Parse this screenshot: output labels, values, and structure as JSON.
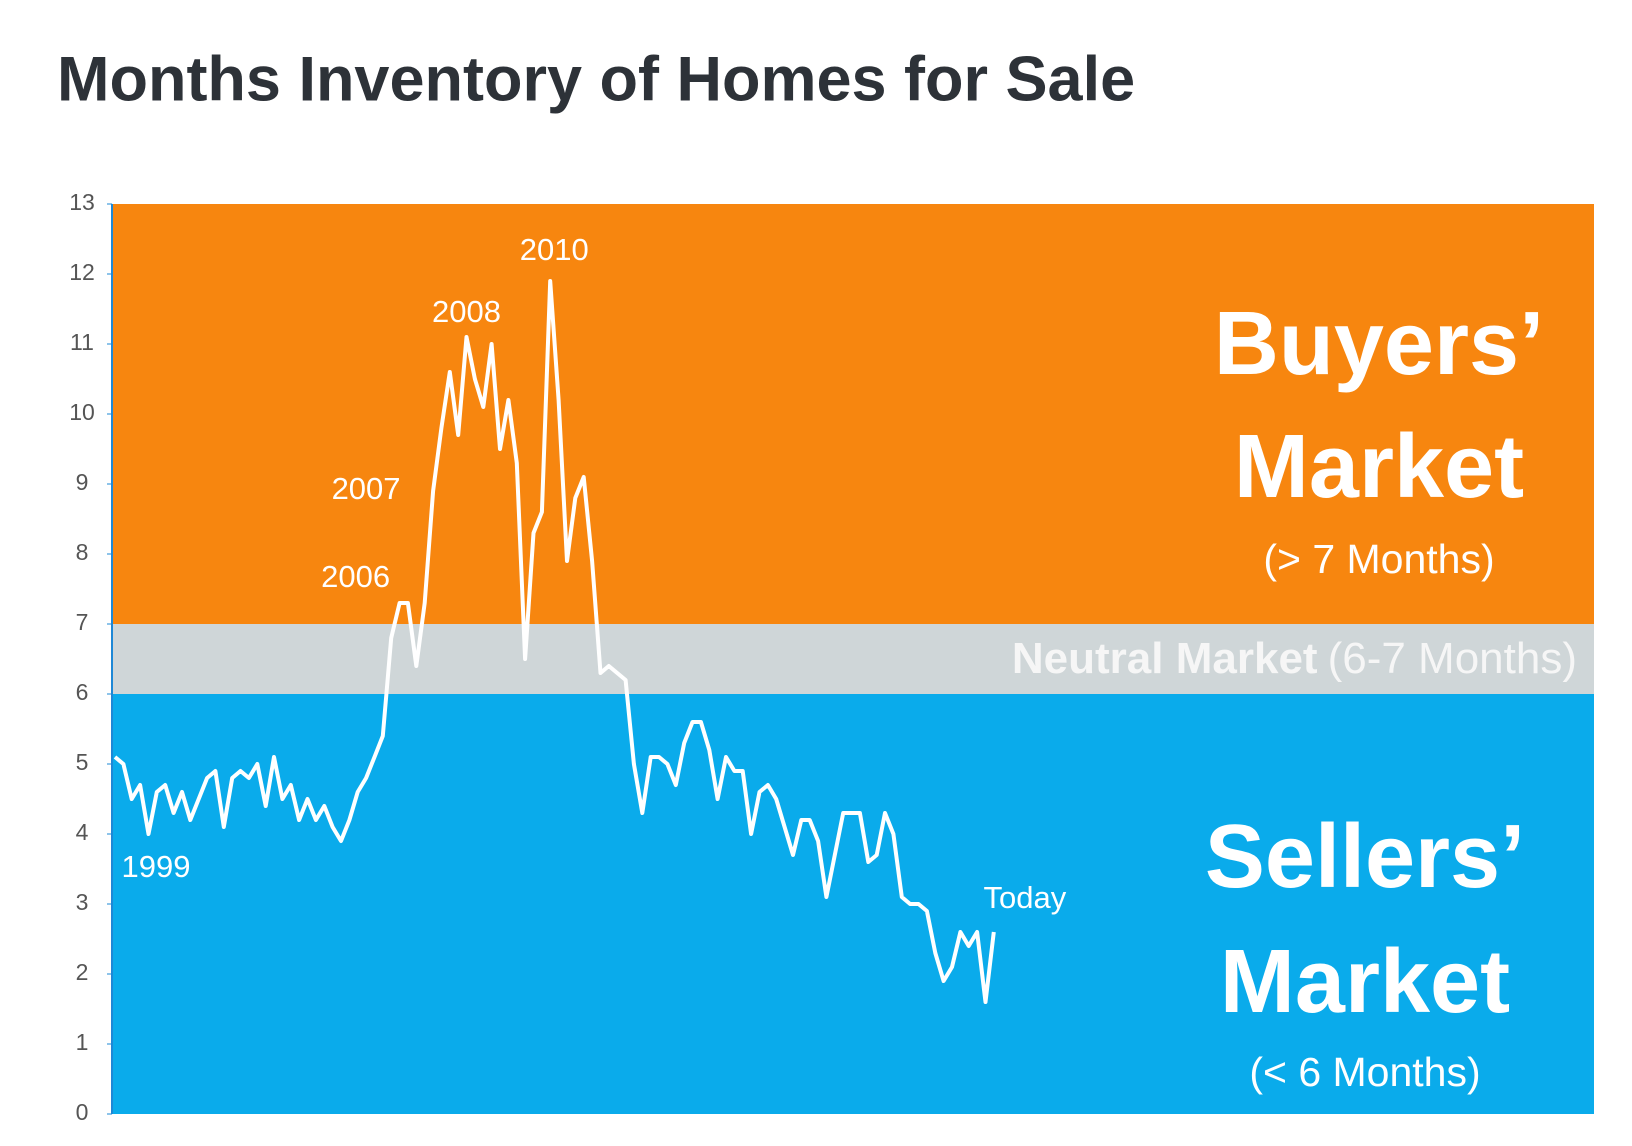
{
  "chart_data": {
    "type": "line",
    "title": "Months Inventory of Homes for Sale",
    "ylim": [
      0,
      13
    ],
    "yticks": [
      0,
      1,
      2,
      3,
      4,
      5,
      6,
      7,
      8,
      9,
      10,
      11,
      12,
      13
    ],
    "color": "#ffffff",
    "categories": [
      null,
      null,
      null,
      null,
      "1999",
      null,
      null,
      null,
      null,
      null,
      null,
      null,
      null,
      null,
      null,
      null,
      null,
      null,
      null,
      null,
      null,
      null,
      null,
      null,
      null,
      null,
      null,
      null,
      null,
      null,
      null,
      null,
      null,
      null,
      "2006",
      null,
      null,
      null,
      "2007",
      null,
      null,
      null,
      "2008",
      null,
      null,
      null,
      null,
      null,
      null,
      null,
      null,
      null,
      "2010",
      null,
      null,
      null,
      null,
      null,
      null,
      null,
      null,
      null,
      null,
      null,
      null,
      null,
      null,
      null,
      null,
      null,
      null,
      null,
      null,
      null,
      null,
      null,
      null,
      null,
      null,
      null,
      null,
      null,
      null,
      null,
      null,
      null,
      null,
      null,
      null,
      null,
      null,
      null,
      null,
      null,
      null,
      null,
      null,
      null,
      null,
      null,
      null,
      null,
      null,
      null,
      null,
      "Today"
    ],
    "values": [
      5.1,
      5.0,
      4.5,
      4.7,
      4.0,
      4.6,
      4.7,
      4.3,
      4.6,
      4.2,
      4.5,
      4.8,
      4.9,
      4.1,
      4.8,
      4.9,
      4.8,
      5.0,
      4.4,
      5.1,
      4.5,
      4.7,
      4.2,
      4.5,
      4.2,
      4.4,
      4.1,
      3.9,
      4.2,
      4.6,
      4.8,
      5.1,
      5.4,
      6.8,
      7.3,
      7.3,
      6.4,
      7.3,
      8.9,
      9.8,
      10.6,
      9.7,
      11.1,
      10.5,
      10.1,
      11.0,
      9.5,
      10.2,
      9.3,
      6.5,
      8.3,
      8.6,
      11.9,
      10.2,
      7.9,
      8.8,
      9.1,
      7.9,
      6.3,
      6.4,
      6.3,
      6.2,
      5.0,
      4.3,
      5.1,
      5.1,
      5.0,
      4.7,
      5.3,
      5.6,
      5.6,
      5.2,
      4.5,
      5.1,
      4.9,
      4.9,
      4.0,
      4.6,
      4.7,
      4.5,
      4.1,
      3.7,
      4.2,
      4.2,
      3.9,
      3.1,
      3.7,
      4.3,
      4.3,
      4.3,
      3.6,
      3.7,
      4.3,
      4.0,
      3.1,
      3.0,
      3.0,
      2.9,
      2.3,
      1.9,
      2.1,
      2.6,
      2.4,
      2.6,
      1.6,
      2.6
    ],
    "bands": [
      {
        "from": 7,
        "to": 13,
        "color": "#f7860f",
        "label": [
          "Buyers’",
          "Market"
        ],
        "sublabel": "(> 7 Months)"
      },
      {
        "from": 6,
        "to": 7,
        "color": "#cfd6d8",
        "label": [
          "Neutral Market"
        ],
        "sublabel": "(6-7 Months)"
      },
      {
        "from": 0,
        "to": 6,
        "color": "#0aabeb",
        "label": [
          "Sellers’",
          "Market"
        ],
        "sublabel": "(< 6 Months)"
      }
    ]
  }
}
